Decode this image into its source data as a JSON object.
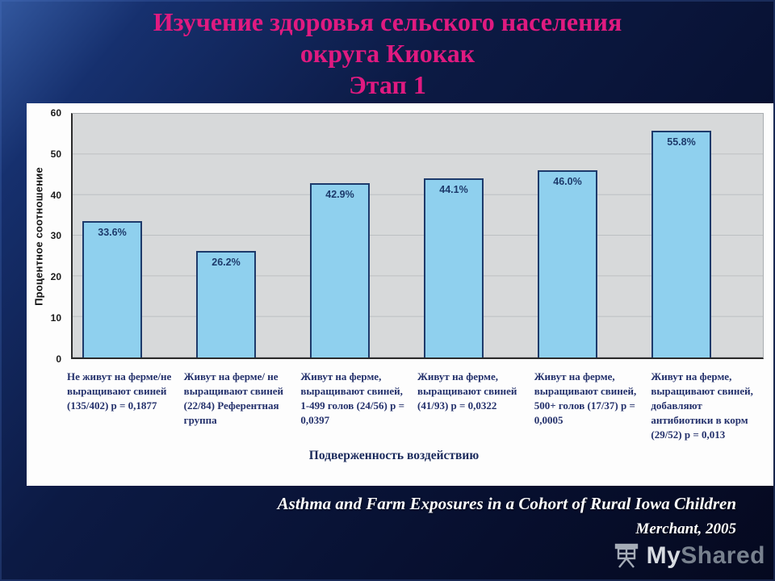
{
  "slide": {
    "title_lines": [
      "Изучение здоровья сельского населения",
      "округа Киокак",
      "Этап 1"
    ],
    "title_color": "#e01a80",
    "citation_title": "Asthma and Farm Exposures in a Cohort of Rural Iowa Children",
    "citation_author": "Merchant, 2005",
    "watermark_part1": "My",
    "watermark_part2": "Shared"
  },
  "chart_data": {
    "type": "bar",
    "title": "",
    "ylabel": "Процентное соотношение",
    "xlabel": "Подверженность воздействию",
    "ylim": [
      0,
      60
    ],
    "yticks": [
      60,
      50,
      40,
      30,
      20,
      10,
      0
    ],
    "grid": true,
    "plot_bg": "#d7d9da",
    "bar_color": "#8fd0ee",
    "bar_border_color": "#1d3a6b",
    "values": [
      33.6,
      26.2,
      42.9,
      44.1,
      46.0,
      55.8
    ],
    "value_labels": [
      "33.6%",
      "26.2%",
      "42.9%",
      "44.1%",
      "46.0%",
      "55.8%"
    ],
    "categories": [
      "Не живут на ферме/не выращивают свиней (135/402) р = 0,1877",
      "Живут на ферме/ не выращивают свиней (22/84) Референтная группа",
      "Живут на ферме, выращивают свиней, 1-499 голов (24/56) р = 0,0397",
      "Живут на ферме, выращивают свиней (41/93) р = 0,0322",
      "Живут на ферме, выращивают свиней, 500+ голов (17/37) р = 0,0005",
      "Живут на ферме, выращивают свиней, добавляют антибиотики в корм (29/52) р = 0,013"
    ]
  }
}
